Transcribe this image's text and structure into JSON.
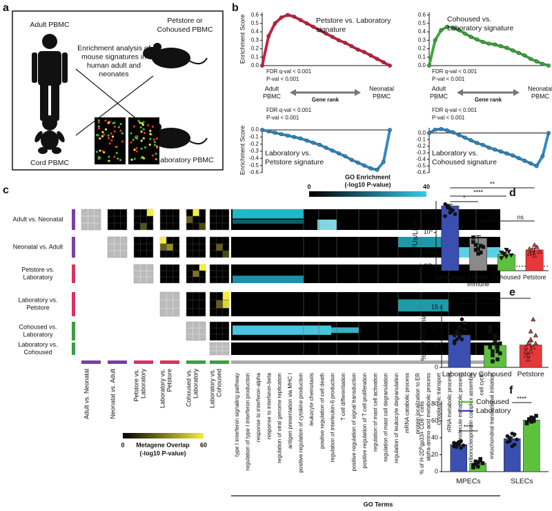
{
  "panel_a": {
    "label": "a",
    "adult": "Adult PBMC",
    "mouse_top": [
      "Petstore or",
      "Cohoused PBMC"
    ],
    "center": [
      "Enrichment analysis of",
      "mouse signatures in",
      "human adult and",
      "neonates"
    ],
    "cord": "Cord PBMC",
    "mouse_bottom": "Laboratory PBMC"
  },
  "panel_b": {
    "label": "b",
    "y_label": "Enrichment Score",
    "rank_left": [
      "Adult",
      "PBMC"
    ],
    "rank_mid": "Gene rank",
    "rank_right": [
      "Neonatal",
      "PBMC"
    ],
    "plots": [
      {
        "title": [
          "Petstore vs. Laboratory",
          "signature"
        ],
        "fdr": "FDR q-val < 0.001",
        "pval": "P-val < 0.001",
        "color": "#c8203c",
        "ylim": [
          0,
          0.63
        ],
        "yticks": [
          {
            "value": 0,
            "label": "0.0"
          },
          0.1,
          0.2,
          0.3,
          0.4,
          0.5,
          0.6
        ],
        "values": [
          0,
          0.35,
          0.5,
          0.57,
          0.6,
          0.58,
          0.54,
          0.5,
          0.46,
          0.42,
          0.38,
          0.34,
          0.3,
          0.27,
          0.23,
          0.19,
          0.16,
          0.12,
          0.08,
          0.04,
          0
        ]
      },
      {
        "title": [
          "Cohoused vs.",
          "Laboratory signature"
        ],
        "fdr": "FDR q-val < 0.001",
        "pval": "P-val < 0.001",
        "color": "#3caa3c",
        "ylim": [
          0,
          0.63
        ],
        "yticks": [
          {
            "value": 0,
            "label": "0.0"
          },
          0.1,
          0.2,
          0.3,
          0.4,
          0.5,
          0.6
        ],
        "values": [
          0,
          0.3,
          0.42,
          0.46,
          0.45,
          0.42,
          0.38,
          0.34,
          0.31,
          0.28,
          0.26,
          0.25,
          0.23,
          0.21,
          0.18,
          0.15,
          0.12,
          0.08,
          0.05,
          0.02,
          0
        ]
      },
      {
        "title": [
          "Laboratory vs.",
          "Petstore signature"
        ],
        "fdr": "FDR q-val < 0.001",
        "pval": "P-val < 0.001",
        "color": "#2e8bc6",
        "ylim": [
          -0.6,
          0.03
        ],
        "yticks": [
          {
            "value": 0,
            "label": "0.0"
          },
          -0.1,
          -0.2,
          -0.3,
          -0.4,
          -0.5,
          -0.6
        ],
        "values": [
          0,
          -0.02,
          -0.04,
          -0.06,
          -0.08,
          -0.1,
          -0.12,
          -0.15,
          -0.18,
          -0.21,
          -0.25,
          -0.29,
          -0.33,
          -0.37,
          -0.42,
          -0.46,
          -0.5,
          -0.54,
          -0.56,
          -0.45,
          0
        ]
      },
      {
        "title": [
          "Laboratory vs.",
          "Cohoused signature"
        ],
        "fdr": "FDR q-val < 0.001",
        "pval": "P-val < 0.001",
        "color": "#2e8bc6",
        "ylim": [
          -0.6,
          0.08
        ],
        "yticks": [
          {
            "value": 0,
            "label": "0.0"
          },
          -0.1,
          -0.2,
          -0.3,
          -0.4,
          -0.5,
          -0.6
        ],
        "values": [
          0,
          0.05,
          0.06,
          0.04,
          0.01,
          -0.03,
          -0.07,
          -0.11,
          -0.15,
          -0.18,
          -0.22,
          -0.25,
          -0.28,
          -0.31,
          -0.34,
          -0.38,
          -0.42,
          -0.46,
          -0.5,
          -0.35,
          0
        ]
      }
    ]
  },
  "panel_c": {
    "label": "c",
    "rows": [
      [
        "Adult vs. Neonatal"
      ],
      [
        "Neonatal vs. Adult"
      ],
      [
        "Petstore vs.",
        "Laboratory"
      ],
      [
        "Laboratory vs.",
        "Petstore"
      ],
      [
        "Cohoused vs.",
        "Laboratory"
      ],
      [
        "Laboratory vs.",
        "Cohoused"
      ]
    ],
    "row_colors": [
      "#7b3fa6",
      "#7b3fa6",
      "#d8345f",
      "#d8345f",
      "#3aa040",
      "#3aa040"
    ],
    "go_legend": {
      "title": "GO Enrichment",
      "subtitle": "(-log10 P-value)",
      "min": 0,
      "max": 40
    },
    "metagene_legend": {
      "min": 0,
      "title": "Metagene Overlap",
      "max": 60,
      "subtitle": "(-log10 P-value)"
    },
    "go_terms": [
      "type I interferon signaling pathway",
      "regulation of type I interferon production",
      "response to interferon-alpha",
      "response to interferon-beta",
      "regulation of viral genome replication",
      "antigen presentation via MHC I",
      "positive regulation of cytokine production",
      "leukocyte chemotaxis",
      "positive regulation of cell death",
      "regulation of interleukin-6 production",
      "T cell differentiation",
      "positive regulation of signal transduction",
      "positive regulation of T cell proliferation",
      "regulation of mast cell activation",
      "regulation of mast cell degranulation",
      "regulation of leukocyte degranulation",
      "mRNA catabolic process",
      "protein localization to ER",
      "alpha-amino acid metabolic process",
      "cytoplasmic transport",
      "rRNA metabolic process",
      "macromolecule metabolic process",
      "ribonucleoprotein complex assembly",
      "cell cycle",
      "mitochondrial translational initiation"
    ],
    "go_axis": "GO Terms"
  },
  "panel_d": {
    "label": "d",
    "type": "bar",
    "y_label": "CFUs/Liver",
    "log": true,
    "ylim": [
      100,
      1000000000
    ],
    "yticks": [
      {
        "value": 100000000,
        "label": "10",
        "exponent": "8"
      },
      {
        "value": 1000000,
        "label": "10",
        "exponent": "6"
      },
      {
        "value": 10000,
        "label": "10",
        "exponent": "4"
      },
      {
        "value": 300,
        "label": "LOD"
      }
    ],
    "categories": [
      [
        "Laboratory"
      ],
      [
        "Listeria",
        "immune"
      ],
      [
        "Cohoused"
      ],
      [
        "Petstore"
      ]
    ],
    "colors": [
      "#3a4fb0",
      "#8a8a8a",
      "#5cc23e",
      "#e8383a"
    ],
    "values": [
      600000000,
      250000,
      5000,
      15000
    ],
    "errors": [
      250000000,
      200000,
      2000,
      8000
    ],
    "points": [
      [
        900000000,
        600000000,
        300000000,
        200000000,
        80000000,
        50000000,
        400000000,
        120000000
      ],
      [
        300000,
        50000,
        20000,
        8000,
        30000,
        100000,
        15000,
        6000,
        40000
      ],
      [
        8000,
        5000,
        3000,
        10000,
        4000,
        2000,
        6000,
        15000
      ],
      [
        20000,
        8000,
        50000,
        30000,
        10000,
        6000,
        15000,
        4000
      ]
    ],
    "significance": [
      "*",
      "****",
      "**",
      "ns",
      "ns"
    ]
  },
  "panel_e": {
    "label": "e",
    "type": "bar",
    "y_label": "% Parasitemia",
    "ylim": [
      0,
      15
    ],
    "yticks": [
      0,
      5,
      10,
      15
    ],
    "categories": [
      "Laboratory",
      "Cohoused",
      "Petstore"
    ],
    "colors": [
      "#3a4fb0",
      "#5cc23e",
      "#e8383a"
    ],
    "values": [
      8.1,
      5.5,
      5.6
    ],
    "errors": [
      0.6,
      0.9,
      0.8
    ],
    "points": [
      [
        8,
        9,
        10,
        7,
        11,
        6.5,
        8.5,
        7.5,
        12,
        9.5,
        6,
        7,
        8
      ],
      [
        5,
        3,
        8,
        2,
        6,
        9,
        4,
        7,
        5,
        3.5,
        10,
        1.5,
        6,
        4
      ],
      [
        5,
        3,
        9,
        12,
        6,
        4,
        2,
        7,
        5,
        8,
        3,
        6,
        4
      ]
    ],
    "significance": [
      "*",
      "*"
    ]
  },
  "panel_f": {
    "label": "f",
    "type": "bar",
    "y_label": {
      "main": "% of H-2D",
      "sup": "b",
      "rest": "gp33+ CD8 T cells"
    },
    "ylim": [
      0,
      80
    ],
    "yticks": [
      0,
      20,
      40,
      60,
      80
    ],
    "categories": [
      "MPECs",
      "SLECs"
    ],
    "series": [
      {
        "name": "Laboratory",
        "color": "#3a4fb0",
        "values": [
          32,
          39
        ],
        "errors": [
          1.5,
          2.2
        ],
        "points": [
          [
            30,
            33,
            35,
            28,
            31,
            34,
            29,
            32,
            36
          ],
          [
            35,
            40,
            45,
            32,
            38,
            42,
            36,
            30,
            44
          ]
        ]
      },
      {
        "name": "Cohoused",
        "color": "#5cc23e",
        "values": [
          10,
          61
        ],
        "errors": [
          1.3,
          1.2
        ],
        "points": [
          [
            8,
            12,
            6,
            15,
            10,
            5,
            9,
            11,
            13
          ],
          [
            58,
            62,
            64,
            60,
            66,
            57,
            61,
            59,
            63
          ]
        ]
      }
    ],
    "significance": [
      "****",
      "****"
    ]
  }
}
